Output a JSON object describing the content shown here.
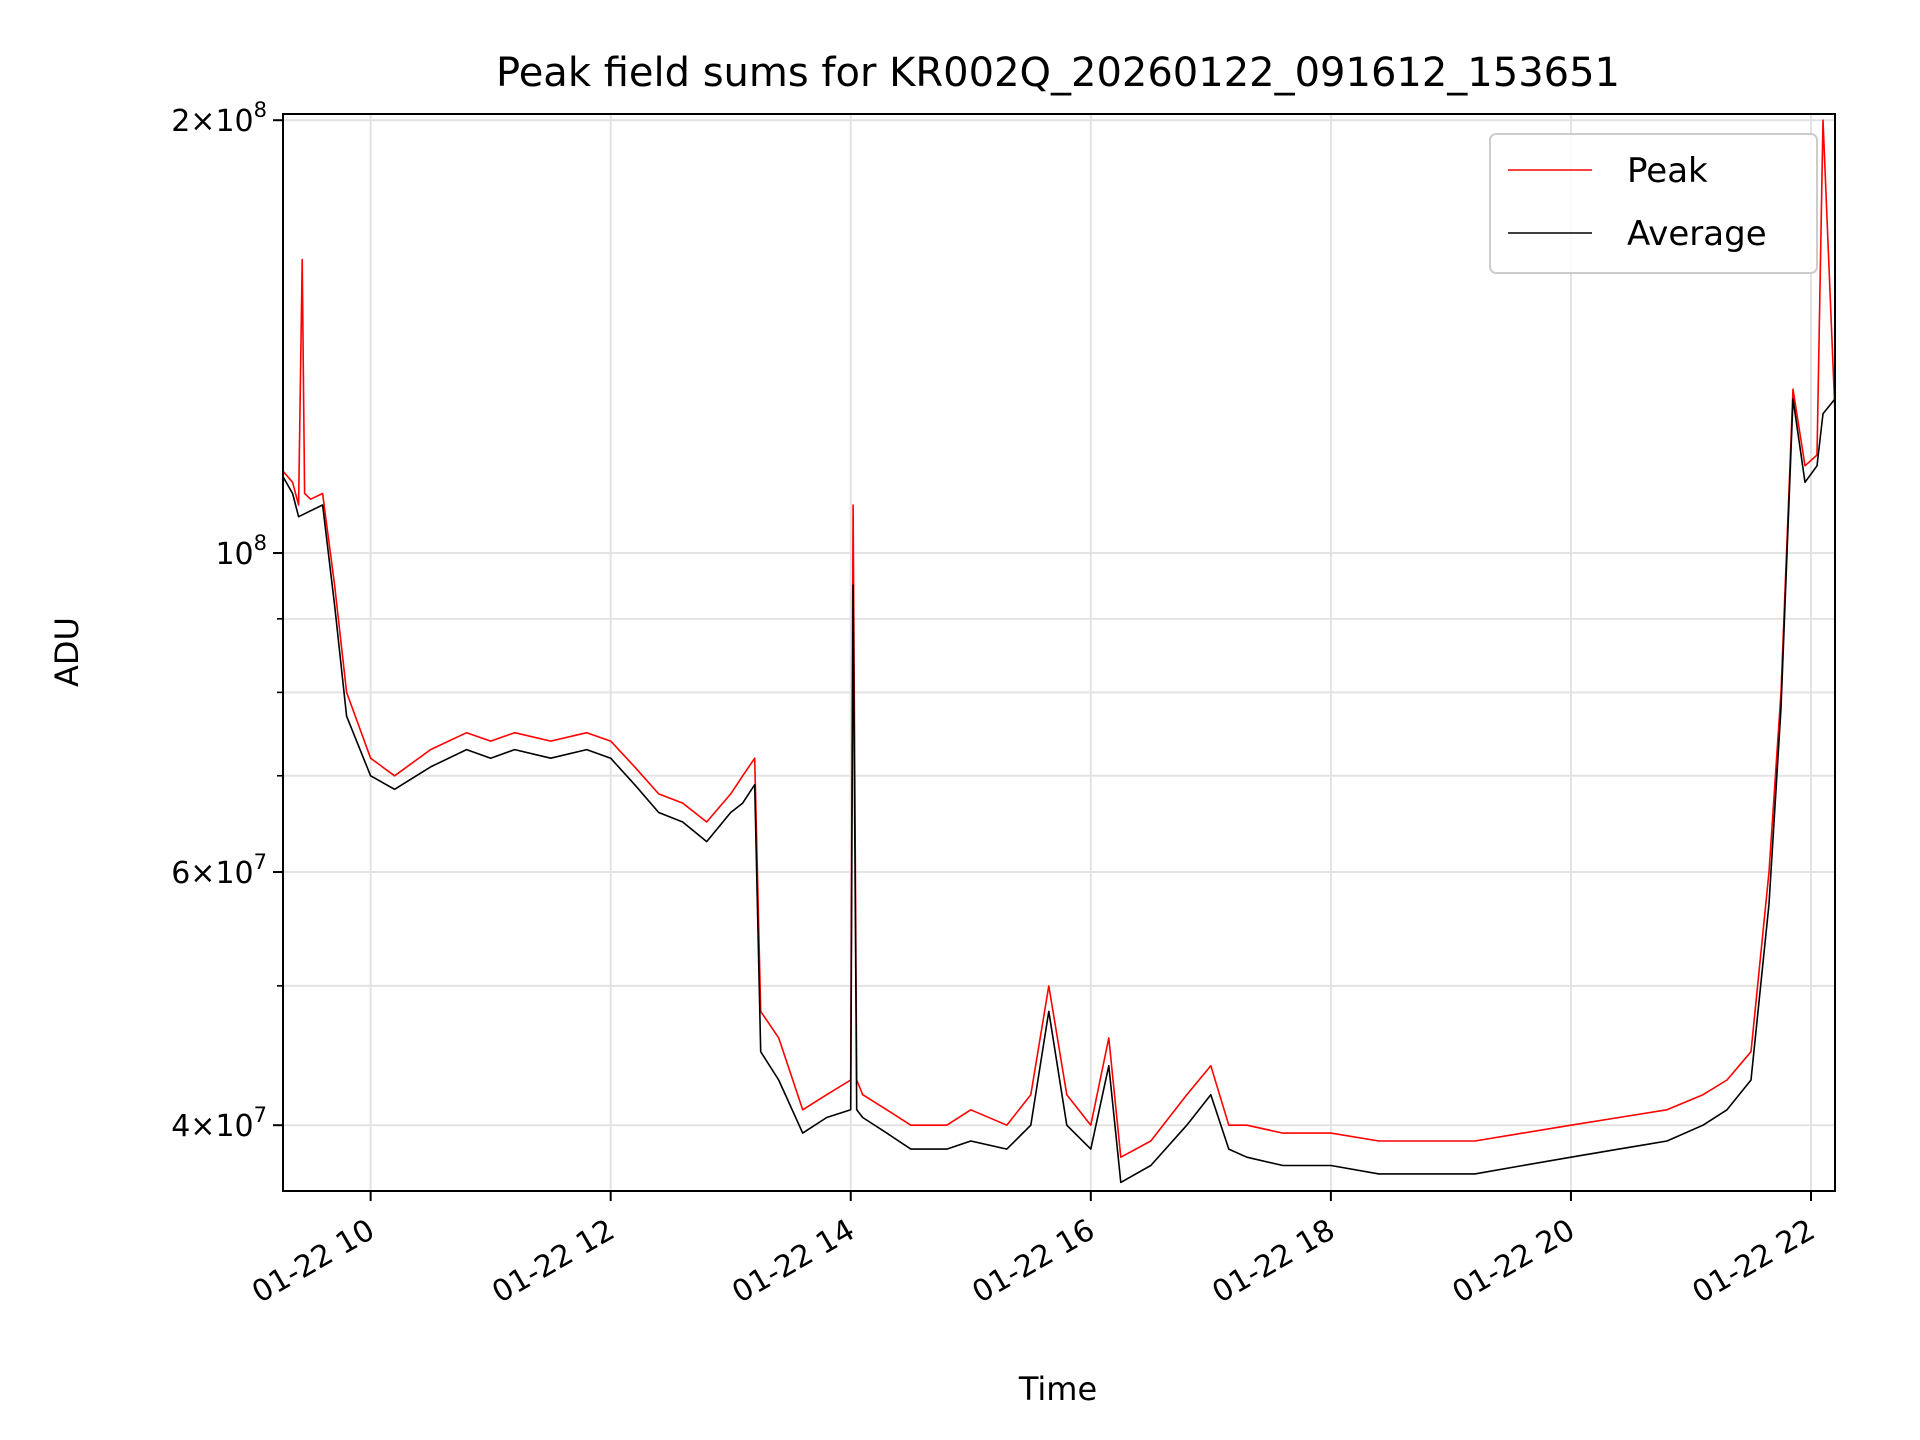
{
  "chart_data": {
    "type": "line",
    "title": "Peak field sums for KR002Q_20260122_091612_153651",
    "xlabel": "Time",
    "ylabel": "ADU",
    "x_unit": "hours (01-22)",
    "xlim": [
      9.27,
      22.2
    ],
    "ylim": [
      36000000,
      202000000
    ],
    "yscale": "log",
    "grid": true,
    "legend": "upper right",
    "x_ticks": [
      {
        "value": 10,
        "label": "01-22 10"
      },
      {
        "value": 12,
        "label": "01-22 12"
      },
      {
        "value": 14,
        "label": "01-22 14"
      },
      {
        "value": 16,
        "label": "01-22 16"
      },
      {
        "value": 18,
        "label": "01-22 18"
      },
      {
        "value": 20,
        "label": "01-22 20"
      },
      {
        "value": 22,
        "label": "01-22 22"
      }
    ],
    "y_major_ticks": [
      {
        "value": 40000000,
        "mant": "4",
        "exp": "7"
      },
      {
        "value": 60000000,
        "mant": "6",
        "exp": "7"
      },
      {
        "value": 100000000,
        "mant": "",
        "exp": "8"
      },
      {
        "value": 200000000,
        "mant": "2",
        "exp": "8"
      }
    ],
    "y_minor_ticks": [
      50000000,
      70000000,
      80000000,
      90000000
    ],
    "series": [
      {
        "name": "Peak",
        "color": "#ff0000",
        "x": [
          9.27,
          9.35,
          9.4,
          9.43,
          9.45,
          9.5,
          9.6,
          9.7,
          9.8,
          10.0,
          10.2,
          10.5,
          10.8,
          11.0,
          11.2,
          11.5,
          11.8,
          12.0,
          12.2,
          12.4,
          12.6,
          12.8,
          13.0,
          13.1,
          13.2,
          13.25,
          13.4,
          13.6,
          13.8,
          14.0,
          14.02,
          14.05,
          14.1,
          14.3,
          14.5,
          14.8,
          15.0,
          15.3,
          15.5,
          15.65,
          15.8,
          16.0,
          16.15,
          16.25,
          16.5,
          16.8,
          17.0,
          17.15,
          17.3,
          17.6,
          18.0,
          18.4,
          18.8,
          19.2,
          19.6,
          20.0,
          20.4,
          20.8,
          21.1,
          21.3,
          21.5,
          21.65,
          21.75,
          21.85,
          21.95,
          22.05,
          22.1,
          22.2
        ],
        "y": [
          114000000,
          112000000,
          108000000,
          160000000,
          110000000,
          109000000,
          110000000,
          95000000,
          80000000,
          72000000,
          70000000,
          73000000,
          75000000,
          74000000,
          75000000,
          74000000,
          75000000,
          74000000,
          71000000,
          68000000,
          67000000,
          65000000,
          68000000,
          70000000,
          72000000,
          48000000,
          46000000,
          41000000,
          42000000,
          43000000,
          108000000,
          43000000,
          42000000,
          41000000,
          40000000,
          40000000,
          41000000,
          40000000,
          42000000,
          50000000,
          42000000,
          40000000,
          46000000,
          38000000,
          39000000,
          42000000,
          44000000,
          40000000,
          40000000,
          39500000,
          39500000,
          39000000,
          39000000,
          39000000,
          39500000,
          40000000,
          40500000,
          41000000,
          42000000,
          43000000,
          45000000,
          60000000,
          80000000,
          130000000,
          115000000,
          117000000,
          200000000,
          125000000
        ]
      },
      {
        "name": "Average",
        "color": "#000000",
        "x": [
          9.27,
          9.35,
          9.4,
          9.5,
          9.6,
          9.7,
          9.8,
          10.0,
          10.2,
          10.5,
          10.8,
          11.0,
          11.2,
          11.5,
          11.8,
          12.0,
          12.2,
          12.4,
          12.6,
          12.8,
          13.0,
          13.1,
          13.2,
          13.25,
          13.4,
          13.6,
          13.8,
          14.0,
          14.02,
          14.05,
          14.1,
          14.3,
          14.5,
          14.8,
          15.0,
          15.3,
          15.5,
          15.65,
          15.8,
          16.0,
          16.15,
          16.25,
          16.5,
          16.8,
          17.0,
          17.15,
          17.3,
          17.6,
          18.0,
          18.4,
          18.8,
          19.2,
          19.6,
          20.0,
          20.4,
          20.8,
          21.1,
          21.3,
          21.5,
          21.65,
          21.75,
          21.85,
          21.95,
          22.05,
          22.1,
          22.2
        ],
        "y": [
          113000000,
          110000000,
          106000000,
          107000000,
          108000000,
          92000000,
          77000000,
          70000000,
          68500000,
          71000000,
          73000000,
          72000000,
          73000000,
          72000000,
          73000000,
          72000000,
          69000000,
          66000000,
          65000000,
          63000000,
          66000000,
          67000000,
          69000000,
          45000000,
          43000000,
          39500000,
          40500000,
          41000000,
          95000000,
          41000000,
          40500000,
          39500000,
          38500000,
          38500000,
          39000000,
          38500000,
          40000000,
          48000000,
          40000000,
          38500000,
          44000000,
          36500000,
          37500000,
          40000000,
          42000000,
          38500000,
          38000000,
          37500000,
          37500000,
          37000000,
          37000000,
          37000000,
          37500000,
          38000000,
          38500000,
          39000000,
          40000000,
          41000000,
          43000000,
          57000000,
          78000000,
          128000000,
          112000000,
          115000000,
          125000000,
          128000000
        ]
      }
    ]
  }
}
